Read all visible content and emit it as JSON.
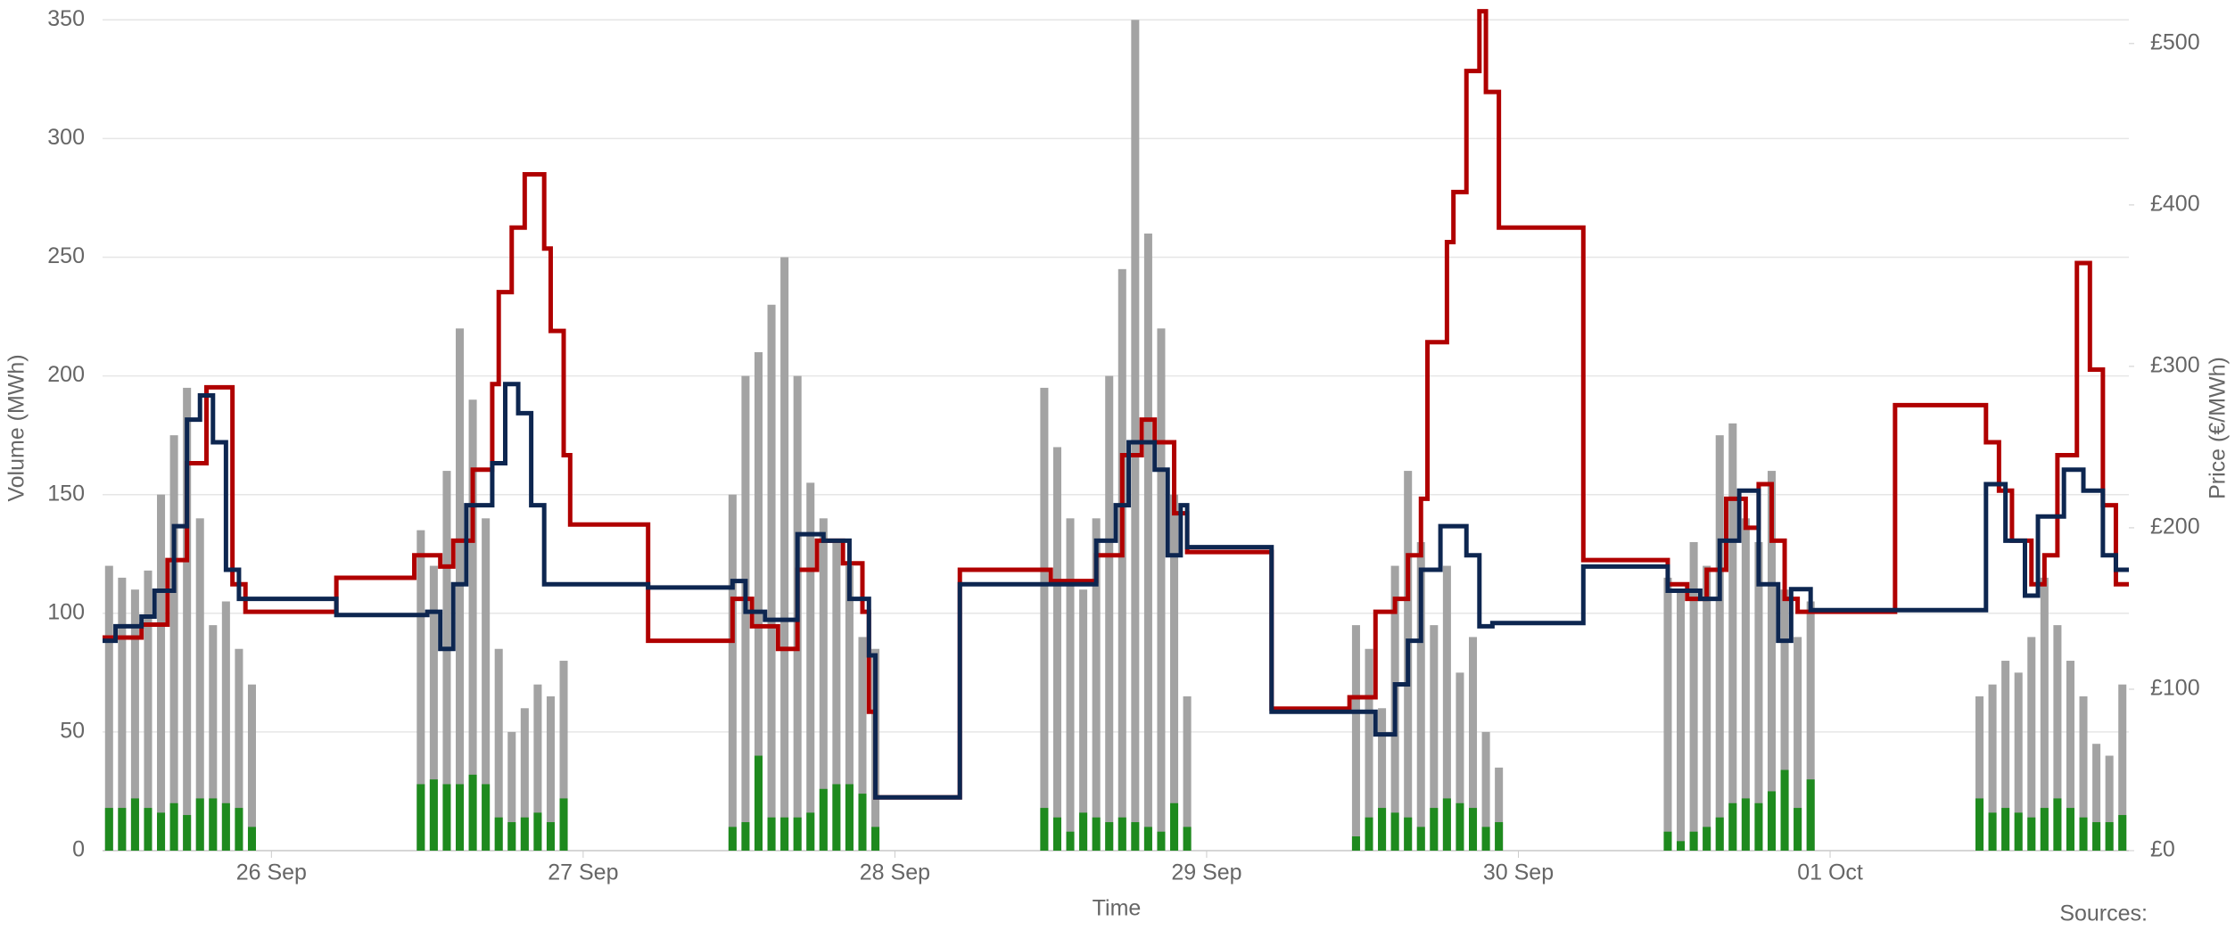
{
  "chart_data": {
    "type": "combo",
    "x_title": "Time",
    "y_title": "Volume (MWh)",
    "y2_title": "Price (€/MWh)",
    "source": "Sources:",
    "grid": true,
    "xlim": [
      0,
      156
    ],
    "xticks": [
      {
        "value": 13,
        "label": "26 Sep"
      },
      {
        "value": 37,
        "label": "27 Sep"
      },
      {
        "value": 61,
        "label": "28 Sep"
      },
      {
        "value": 85,
        "label": "29 Sep"
      },
      {
        "value": 109,
        "label": "30 Sep"
      },
      {
        "value": 133,
        "label": "01 Oct"
      }
    ],
    "ylim": [
      0,
      355
    ],
    "yticks": [
      0,
      50,
      100,
      150,
      200,
      250,
      300,
      350
    ],
    "y2lim": [
      0,
      522
    ],
    "y2ticks": [
      {
        "value": 0,
        "label": "£0"
      },
      {
        "value": 100,
        "label": "£100"
      },
      {
        "value": 200,
        "label": "£200"
      },
      {
        "value": 300,
        "label": "£300"
      },
      {
        "value": 400,
        "label": "£400"
      },
      {
        "value": 500,
        "label": "£500"
      }
    ],
    "series": [
      {
        "type": "bar",
        "color": "#a3a3a3",
        "x": [
          0.5,
          1.5,
          2.5,
          3.5,
          4.5,
          5.5,
          6.5,
          7.5,
          8.5,
          9.5,
          10.5,
          11.5,
          24.5,
          25.5,
          26.5,
          27.5,
          28.5,
          29.5,
          30.5,
          31.5,
          32.5,
          33.5,
          34.5,
          35.5,
          48.5,
          49.5,
          50.5,
          51.5,
          52.5,
          53.5,
          54.5,
          55.5,
          56.5,
          57.5,
          58.5,
          59.5,
          72.5,
          73.5,
          74.5,
          75.5,
          76.5,
          77.5,
          78.5,
          79.5,
          80.5,
          81.5,
          82.5,
          83.5,
          96.5,
          97.5,
          98.5,
          99.5,
          100.5,
          101.5,
          102.5,
          103.5,
          104.5,
          105.5,
          106.5,
          107.5,
          120.5,
          121.5,
          122.5,
          123.5,
          124.5,
          125.5,
          126.5,
          127.5,
          128.5,
          129.5,
          130.5,
          131.5,
          144.5,
          145.5,
          146.5,
          147.5,
          148.5,
          149.5,
          150.5,
          151.5,
          152.5,
          153.5,
          154.5,
          155.5
        ],
        "values": [
          120,
          115,
          110,
          118,
          150,
          175,
          195,
          140,
          95,
          105,
          85,
          70,
          135,
          120,
          160,
          220,
          190,
          140,
          85,
          50,
          60,
          70,
          65,
          80,
          150,
          200,
          210,
          230,
          250,
          200,
          155,
          140,
          130,
          120,
          90,
          85,
          195,
          170,
          140,
          110,
          140,
          200,
          245,
          350,
          260,
          220,
          150,
          65,
          95,
          85,
          60,
          120,
          160,
          130,
          95,
          120,
          75,
          90,
          50,
          35,
          115,
          110,
          130,
          120,
          175,
          180,
          140,
          130,
          160,
          110,
          90,
          105,
          65,
          70,
          80,
          75,
          90,
          115,
          95,
          80,
          65,
          45,
          40,
          70
        ]
      },
      {
        "type": "bar",
        "color": "#1e8a1e",
        "x": [
          0.5,
          1.5,
          2.5,
          3.5,
          4.5,
          5.5,
          6.5,
          7.5,
          8.5,
          9.5,
          10.5,
          11.5,
          24.5,
          25.5,
          26.5,
          27.5,
          28.5,
          29.5,
          30.5,
          31.5,
          32.5,
          33.5,
          34.5,
          35.5,
          48.5,
          49.5,
          50.5,
          51.5,
          52.5,
          53.5,
          54.5,
          55.5,
          56.5,
          57.5,
          58.5,
          59.5,
          72.5,
          73.5,
          74.5,
          75.5,
          76.5,
          77.5,
          78.5,
          79.5,
          80.5,
          81.5,
          82.5,
          83.5,
          96.5,
          97.5,
          98.5,
          99.5,
          100.5,
          101.5,
          102.5,
          103.5,
          104.5,
          105.5,
          106.5,
          107.5,
          120.5,
          121.5,
          122.5,
          123.5,
          124.5,
          125.5,
          126.5,
          127.5,
          128.5,
          129.5,
          130.5,
          131.5,
          144.5,
          145.5,
          146.5,
          147.5,
          148.5,
          149.5,
          150.5,
          151.5,
          152.5,
          153.5,
          154.5,
          155.5
        ],
        "values": [
          18,
          18,
          22,
          18,
          16,
          20,
          15,
          22,
          22,
          20,
          18,
          10,
          28,
          30,
          28,
          28,
          32,
          28,
          14,
          12,
          14,
          16,
          12,
          22,
          10,
          12,
          40,
          14,
          14,
          14,
          16,
          26,
          28,
          28,
          24,
          10,
          18,
          14,
          8,
          16,
          14,
          12,
          14,
          12,
          10,
          8,
          20,
          10,
          6,
          14,
          18,
          16,
          14,
          10,
          18,
          22,
          20,
          18,
          10,
          12,
          8,
          4,
          8,
          10,
          14,
          20,
          22,
          20,
          25,
          34,
          18,
          30,
          22,
          16,
          18,
          16,
          14,
          18,
          22,
          18,
          14,
          12,
          12,
          15
        ]
      },
      {
        "type": "step",
        "axis": "y2",
        "color": "#b00000",
        "x": [
          0,
          3,
          5,
          6.5,
          8,
          10,
          11,
          18,
          24,
          26,
          27,
          28.5,
          30,
          30.5,
          31.5,
          32.5,
          34,
          34.5,
          35.5,
          36,
          42,
          48.5,
          50,
          52,
          53.5,
          55,
          57,
          58.5,
          59,
          59.5,
          66,
          73,
          76.5,
          78.5,
          80,
          81,
          82.5,
          83.5,
          90,
          96,
          98,
          99.5,
          100.5,
          101.5,
          102,
          103.5,
          104,
          105,
          106,
          106.5,
          107.5,
          114,
          120.5,
          122,
          123.5,
          125,
          126.5,
          127.5,
          128.5,
          129.5,
          130.5,
          138,
          145,
          146,
          147,
          148.5,
          149.5,
          150.5,
          152,
          153,
          154,
          155,
          156
        ],
        "values": [
          132,
          140,
          180,
          240,
          287,
          165,
          148,
          169,
          183,
          176,
          192,
          236,
          289,
          346,
          386,
          419,
          373,
          322,
          245,
          202,
          130,
          156,
          139,
          125,
          174,
          192,
          178,
          148,
          86,
          33,
          174,
          167,
          183,
          245,
          267,
          253,
          209,
          185,
          88,
          95,
          148,
          156,
          183,
          218,
          315,
          377,
          408,
          483,
          520,
          470,
          386,
          180,
          165,
          156,
          174,
          218,
          200,
          227,
          192,
          156,
          148,
          276,
          253,
          223,
          192,
          165,
          183,
          245,
          364,
          298,
          214,
          165,
          165
        ]
      },
      {
        "type": "step",
        "axis": "y2",
        "color": "#0d2650",
        "x": [
          0,
          1,
          3,
          4,
          5.5,
          6.5,
          7.5,
          8.5,
          9.5,
          10.5,
          18,
          25,
          26,
          27,
          28,
          30,
          31,
          32,
          33,
          34,
          42,
          48.5,
          49.5,
          51,
          53.5,
          55.5,
          57.5,
          59,
          59.5,
          66,
          76.5,
          78,
          79,
          81,
          82,
          83,
          83.5,
          90,
          96,
          98,
          99.5,
          100.5,
          101.5,
          103,
          105,
          106,
          107,
          114,
          120.5,
          123,
          124.5,
          126,
          127.5,
          129,
          130,
          131.5,
          145,
          146.5,
          148,
          149,
          151,
          152.5,
          154,
          155,
          156
        ],
        "values": [
          130,
          139,
          145,
          161,
          201,
          267,
          282,
          253,
          174,
          156,
          146,
          148,
          125,
          165,
          214,
          240,
          289,
          271,
          214,
          165,
          163,
          167,
          148,
          143,
          196,
          192,
          156,
          121,
          33,
          165,
          192,
          214,
          253,
          236,
          183,
          214,
          188,
          86,
          86,
          72,
          103,
          130,
          174,
          201,
          183,
          139,
          141,
          176,
          161,
          156,
          192,
          223,
          165,
          130,
          162,
          149,
          227,
          192,
          158,
          207,
          236,
          223,
          183,
          174,
          174
        ]
      }
    ]
  }
}
